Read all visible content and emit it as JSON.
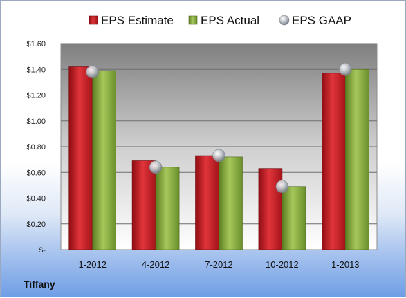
{
  "company": "Tiffany",
  "chart_data": {
    "type": "bar",
    "categories": [
      "1-2012",
      "4-2012",
      "7-2012",
      "10-2012",
      "1-2013"
    ],
    "series": [
      {
        "name": "EPS Estimate",
        "values": [
          1.42,
          0.69,
          0.73,
          0.63,
          1.37
        ],
        "color": "#c0181f"
      },
      {
        "name": "EPS Actual",
        "values": [
          1.39,
          0.64,
          0.72,
          0.49,
          1.4
        ],
        "color": "#7ea33a"
      },
      {
        "name": "EPS GAAP",
        "values": [
          1.38,
          0.64,
          0.73,
          0.49,
          1.4
        ],
        "color": "#b9bfc8",
        "marker": "sphere"
      }
    ],
    "y_ticks": [
      0,
      0.2,
      0.4,
      0.6,
      0.8,
      1.0,
      1.2,
      1.4,
      1.6
    ],
    "y_tick_labels": [
      "$-",
      "$0.20",
      "$0.40",
      "$0.60",
      "$0.80",
      "$1.00",
      "$1.20",
      "$1.40",
      "$1.60"
    ],
    "ylim": [
      0,
      1.6
    ],
    "grid": true,
    "legend_position": "top"
  }
}
